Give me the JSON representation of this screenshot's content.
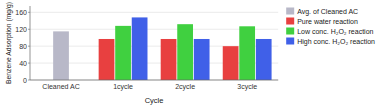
{
  "chart_data": {
    "type": "bar",
    "categories": [
      "Cleaned AC",
      "1cycle",
      "2cycle",
      "3cycle"
    ],
    "series": [
      {
        "name": "Avg. of Cleaned AC",
        "color": "#b8b8c8",
        "values": [
          115,
          null,
          null,
          null
        ]
      },
      {
        "name": "Pure water reaction",
        "color": "#e84040",
        "values": [
          null,
          97,
          97,
          80
        ]
      },
      {
        "name": "Low conc. H₂O₂ reaction",
        "color": "#40d040",
        "values": [
          null,
          128,
          132,
          127
        ]
      },
      {
        "name": "High conc. H₂O₂ reaction",
        "color": "#4060e8",
        "values": [
          null,
          148,
          97,
          97
        ]
      }
    ],
    "x_label": "Cycle",
    "y_label": "Benzene Adsorption (mg/g)",
    "ylim": [
      0,
      175
    ],
    "yticks": [
      0,
      40,
      80,
      120,
      160
    ],
    "grid": true,
    "legend": "upper right"
  }
}
